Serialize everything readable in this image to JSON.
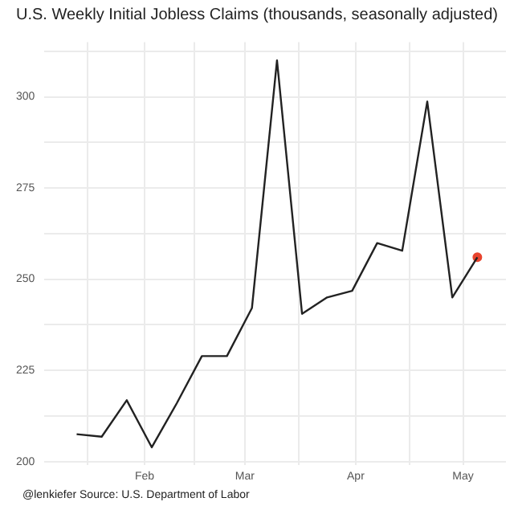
{
  "chart_data": {
    "type": "line",
    "title": "U.S. Weekly Initial Jobless Claims (thousands, seasonally adjusted)",
    "x": [
      "--01-13",
      "--01-20",
      "--01-27",
      "--02-03",
      "--02-10",
      "--02-17",
      "--02-24",
      "--03-03",
      "--03-10",
      "--03-17",
      "--03-24",
      "--03-31",
      "--04-07",
      "--04-14",
      "--04-21",
      "--04-28",
      "--05-05"
    ],
    "series": [
      {
        "color": "#222222",
        "marker": "none",
        "values": [
          207.5,
          206.8,
          216.8,
          203.9,
          216,
          228.9,
          228.9,
          242.1,
          310,
          240.5,
          245,
          246.8,
          259.9,
          257.8,
          298.7,
          245,
          256
        ]
      },
      {
        "type": "scatter",
        "marker": "circle",
        "color": "#e8442e",
        "x": [
          "--05-05"
        ],
        "values": [
          256
        ]
      }
    ],
    "xlim": [
      "--01-04",
      "--05-13"
    ],
    "xticks": [
      {
        "value": "--01-16",
        "label": null
      },
      {
        "value": "--02-01",
        "label": "Feb"
      },
      {
        "value": "--02-15",
        "label": null
      },
      {
        "value": "--03-01",
        "label": "Mar"
      },
      {
        "value": "--03-16",
        "label": null
      },
      {
        "value": "--04-01",
        "label": "Apr"
      },
      {
        "value": "--04-16",
        "label": null
      },
      {
        "value": "--05-01",
        "label": "May"
      }
    ],
    "ylim": [
      199,
      315
    ],
    "yticks": [
      200,
      {
        "value": 212.5,
        "label": null
      },
      225,
      {
        "value": 237.5,
        "label": null
      },
      250,
      {
        "value": 262.5,
        "label": null
      },
      275,
      {
        "value": 287.5,
        "label": null
      },
      300,
      {
        "value": 312.5,
        "label": null
      }
    ],
    "grid": true,
    "legend": false,
    "line_style": "solid",
    "annotations": [
      "@lenkiefer Source: U.S. Department of Labor"
    ]
  }
}
